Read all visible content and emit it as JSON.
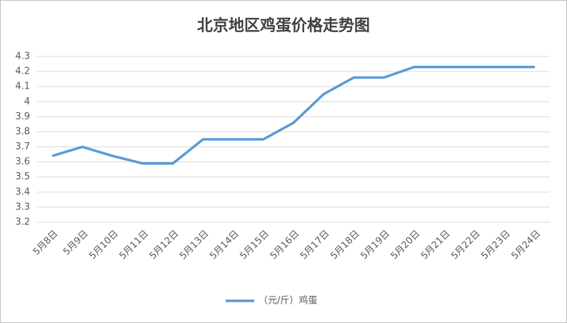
{
  "chart_data": {
    "type": "line",
    "title": "北京地区鸡蛋价格走势图",
    "categories": [
      "5月8日",
      "5月9日",
      "5月10日",
      "5月11日",
      "5月12日",
      "5月13日",
      "5月14日",
      "5月15日",
      "5月16日",
      "5月17日",
      "5月18日",
      "5月19日",
      "5月20日",
      "5月21日",
      "5月22日",
      "5月23日",
      "5月24日"
    ],
    "series": [
      {
        "name": "（元/斤）鸡蛋",
        "color": "#5b9bd5",
        "values": [
          3.64,
          3.7,
          3.64,
          3.59,
          3.59,
          3.75,
          3.75,
          3.75,
          3.86,
          4.05,
          4.16,
          4.16,
          4.23,
          4.23,
          4.23,
          4.23,
          4.23
        ]
      }
    ],
    "ylim": [
      3.2,
      4.3
    ],
    "yticks": [
      3.2,
      3.3,
      3.4,
      3.5,
      3.6,
      3.7,
      3.8,
      3.9,
      4,
      4.1,
      4.2,
      4.3
    ],
    "grid": true,
    "legend": "bottom"
  }
}
